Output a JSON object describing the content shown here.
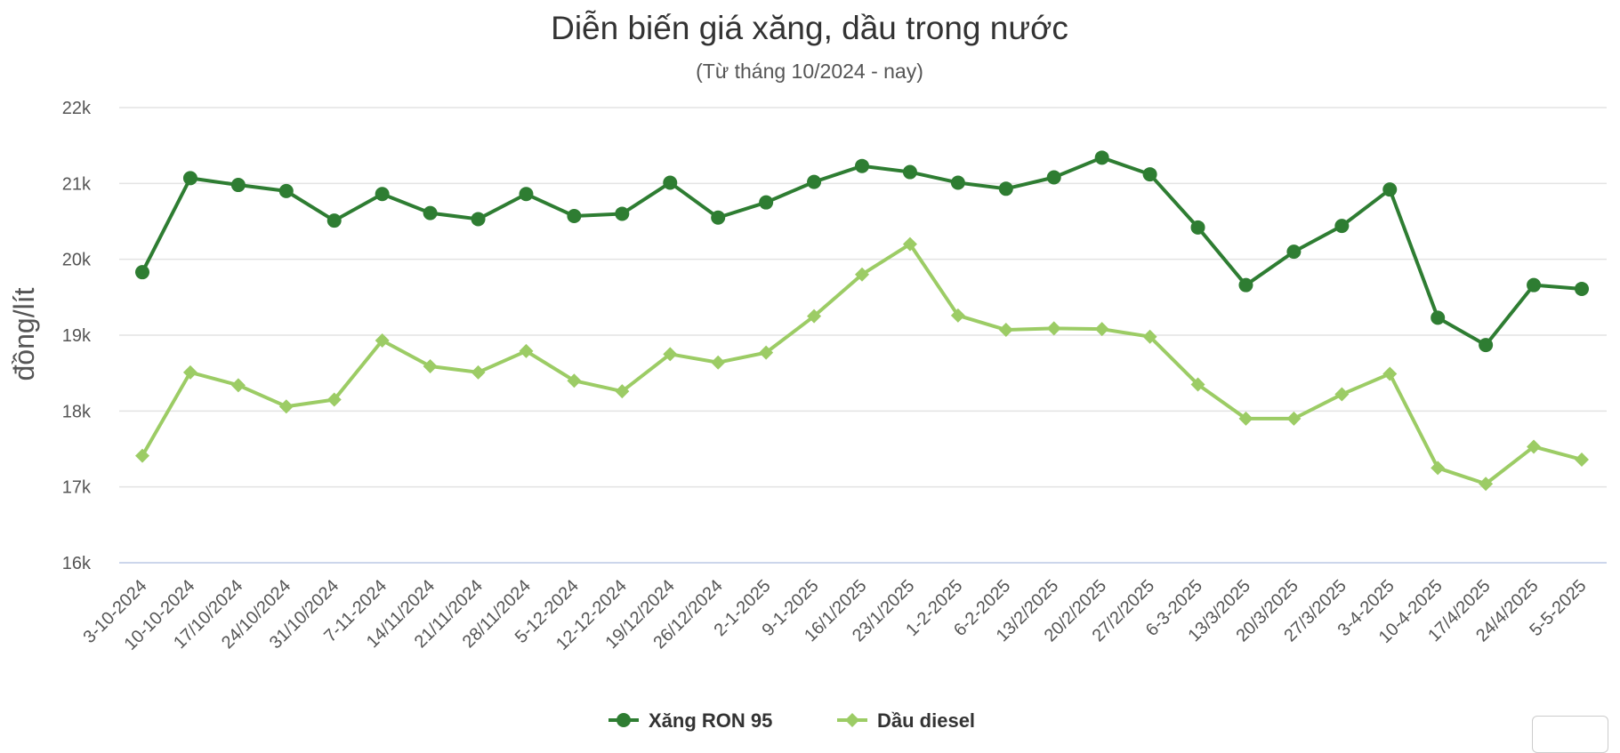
{
  "chart_data": {
    "type": "line",
    "title": "Diễn biến giá xăng, dầu trong nước",
    "subtitle": "(Từ tháng 10/2024 - nay)",
    "ylabel": "đồng/lít",
    "xlabel": "",
    "ylim": [
      16000,
      22000
    ],
    "yticks": [
      {
        "value": 16000,
        "label": "16k"
      },
      {
        "value": 17000,
        "label": "17k"
      },
      {
        "value": 18000,
        "label": "18k"
      },
      {
        "value": 19000,
        "label": "19k"
      },
      {
        "value": 20000,
        "label": "20k"
      },
      {
        "value": 21000,
        "label": "21k"
      },
      {
        "value": 22000,
        "label": "22k"
      }
    ],
    "grid": true,
    "legend_position": "bottom-center",
    "categories": [
      "3-10-2024",
      "10-10-2024",
      "17/10/2024",
      "24/10/2024",
      "31/10/2024",
      "7-11-2024",
      "14/11/2024",
      "21/11/2024",
      "28/11/2024",
      "5-12-2024",
      "12-12-2024",
      "19/12/2024",
      "26/12/2024",
      "2-1-2025",
      "9-1-2025",
      "16/1/2025",
      "23/1/2025",
      "1-2-2025",
      "6-2-2025",
      "13/2/2025",
      "20/2/2025",
      "27/2/2025",
      "6-3-2025",
      "13/3/2025",
      "20/3/2025",
      "27/3/2025",
      "3-4-2025",
      "10-4-2025",
      "17/4/2025",
      "24/4/2025",
      "5-5-2025"
    ],
    "series": [
      {
        "name": "Xăng RON 95",
        "color": "#2e7d32",
        "marker": "circle",
        "values": [
          19830,
          21070,
          20980,
          20900,
          20510,
          20860,
          20610,
          20530,
          20860,
          20570,
          20600,
          21010,
          20550,
          20750,
          21020,
          21230,
          21150,
          21010,
          20930,
          21080,
          21340,
          21120,
          20420,
          19660,
          20100,
          20440,
          20920,
          19230,
          18870,
          19660,
          19610
        ]
      },
      {
        "name": "Dầu diesel",
        "color": "#9ccc65",
        "marker": "diamond",
        "values": [
          17410,
          18510,
          18340,
          18060,
          18150,
          18930,
          18590,
          18510,
          18790,
          18400,
          18260,
          18750,
          18640,
          18770,
          19250,
          19800,
          20200,
          19260,
          19070,
          19090,
          19080,
          18980,
          18350,
          17900,
          17900,
          18220,
          18490,
          17250,
          17040,
          17530,
          17360
        ]
      }
    ]
  }
}
